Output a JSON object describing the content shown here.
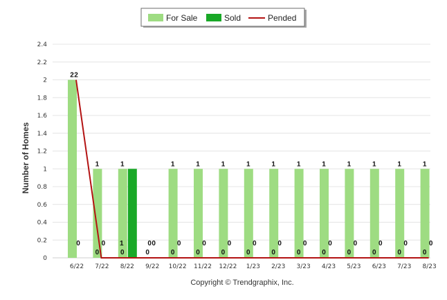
{
  "chart_data": {
    "type": "bar",
    "categories": [
      "6/22",
      "7/22",
      "8/22",
      "9/22",
      "10/22",
      "11/22",
      "12/22",
      "1/23",
      "2/23",
      "3/23",
      "4/23",
      "5/23",
      "6/23",
      "7/23",
      "8/23"
    ],
    "series": [
      {
        "name": "For Sale",
        "type": "bar",
        "color": "#9edc82",
        "values": [
          2,
          1,
          1,
          0,
          1,
          1,
          1,
          1,
          1,
          1,
          1,
          1,
          1,
          1,
          1
        ]
      },
      {
        "name": "Sold",
        "type": "bar",
        "color": "#19a827",
        "values": [
          0,
          0,
          1,
          0,
          0,
          0,
          0,
          0,
          0,
          0,
          0,
          0,
          0,
          0,
          0
        ]
      },
      {
        "name": "Pended",
        "type": "line",
        "color": "#b31212",
        "values": [
          2,
          0,
          0,
          0,
          0,
          0,
          0,
          0,
          0,
          0,
          0,
          0,
          0,
          0,
          0
        ]
      }
    ],
    "ylabel": "Number of Homes",
    "yticks": [
      "0",
      "0.2",
      "0.4",
      "0.6",
      "0.8",
      "1",
      "1.2",
      "1.4",
      "1.6",
      "1.8",
      "2",
      "2.2",
      "2.4"
    ],
    "ylim": [
      0,
      2.4
    ],
    "grid": true,
    "legend_position": "top-center"
  },
  "footer": {
    "copyright": "Copyright © Trendgraphix, Inc."
  }
}
